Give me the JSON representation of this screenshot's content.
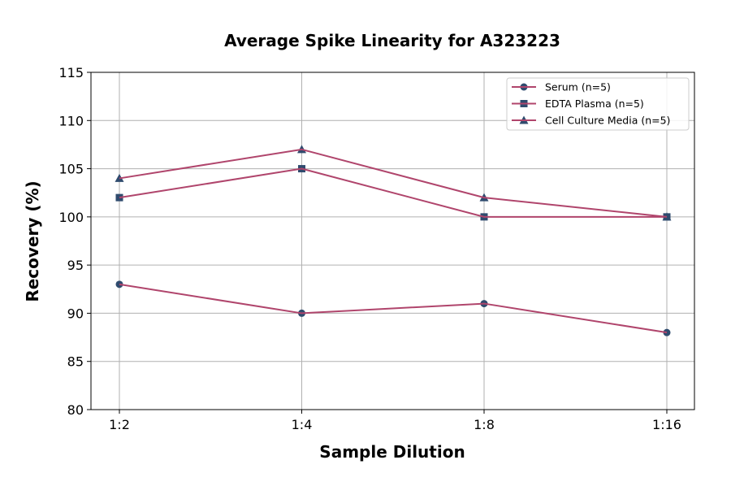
{
  "chart_data": {
    "type": "line",
    "title": "Average Spike Linearity for A323223",
    "xlabel": "Sample Dilution",
    "ylabel": "Recovery (%)",
    "categories": [
      "1:2",
      "1:4",
      "1:8",
      "1:16"
    ],
    "ylim": [
      80,
      115
    ],
    "yticks": [
      80,
      85,
      90,
      95,
      100,
      105,
      110,
      115
    ],
    "grid": true,
    "legend_position": "top-right",
    "line_color": "#b0456c",
    "marker_color": "#2f4b6e",
    "series": [
      {
        "name": "Serum (n=5)",
        "marker": "circle",
        "values": [
          93,
          90,
          91,
          88
        ]
      },
      {
        "name": "EDTA Plasma (n=5)",
        "marker": "square",
        "values": [
          102,
          105,
          100,
          100
        ]
      },
      {
        "name": "Cell Culture Media (n=5)",
        "marker": "triangle",
        "values": [
          104,
          107,
          102,
          100
        ]
      }
    ]
  }
}
